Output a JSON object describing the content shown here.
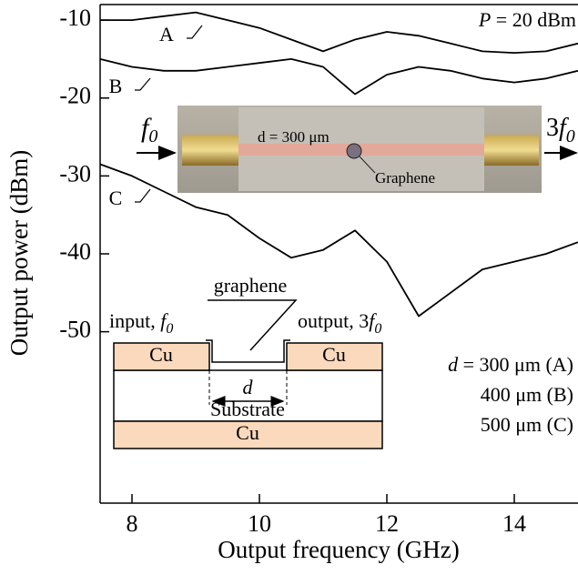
{
  "chart_data": {
    "type": "line",
    "x_label": "Output frequency (GHz)",
    "y_label": "Output power (dBm)",
    "x": [
      7.5,
      8,
      8.5,
      9,
      9.5,
      10,
      10.5,
      11,
      11.5,
      12,
      12.5,
      13,
      13.5,
      14,
      14.5,
      15
    ],
    "series": [
      {
        "name": "A",
        "color": "#000000",
        "values": [
          -10,
          -10,
          -9.5,
          -9,
          -10,
          -11,
          -12.5,
          -14,
          -12.5,
          -11.5,
          -12,
          -13,
          -14,
          -14.2,
          -14,
          -13
        ]
      },
      {
        "name": "B",
        "color": "#000000",
        "values": [
          -15,
          -16,
          -16.5,
          -16.5,
          -16,
          -15.5,
          -15,
          -16,
          -19.5,
          -17,
          -16,
          -16.5,
          -17.5,
          -18,
          -17.5,
          -16.5
        ]
      },
      {
        "name": "C",
        "color": "#000000",
        "values": [
          -28.5,
          -30,
          -32,
          -34,
          -35,
          -38,
          -40.5,
          -39.5,
          -37,
          -41,
          -48,
          -45,
          -42,
          -41,
          -40,
          -38.5
        ]
      }
    ],
    "xlim": [
      7.5,
      15
    ],
    "ylim": [
      -72,
      -8
    ],
    "xticks": [
      8,
      10,
      12,
      14
    ],
    "yticks": [
      -10,
      -20,
      -30,
      -40,
      -50
    ],
    "annotations": {
      "power": {
        "var": "P",
        "text": " = 20 dBm"
      },
      "legend": [
        {
          "var": "d",
          "text": " = 300 μm (A)"
        },
        {
          "text": "400 μm (B)"
        },
        {
          "text": "500 μm (C)"
        }
      ],
      "photo": {
        "dimension": "d = 300 μm",
        "label": "Graphene",
        "input": {
          "var": "f",
          "sub": "0"
        },
        "output": {
          "pre": "3",
          "var": "f",
          "sub": "0"
        }
      },
      "schematic": {
        "graphene": "graphene",
        "input": {
          "pre": "input, ",
          "var": "f",
          "sub": "0"
        },
        "output": {
          "pre": "output, 3",
          "var": "f",
          "sub": "0"
        },
        "cu": [
          "Cu",
          "Cu",
          "Cu"
        ],
        "gap": "d",
        "substrate": "Substrate"
      }
    }
  }
}
